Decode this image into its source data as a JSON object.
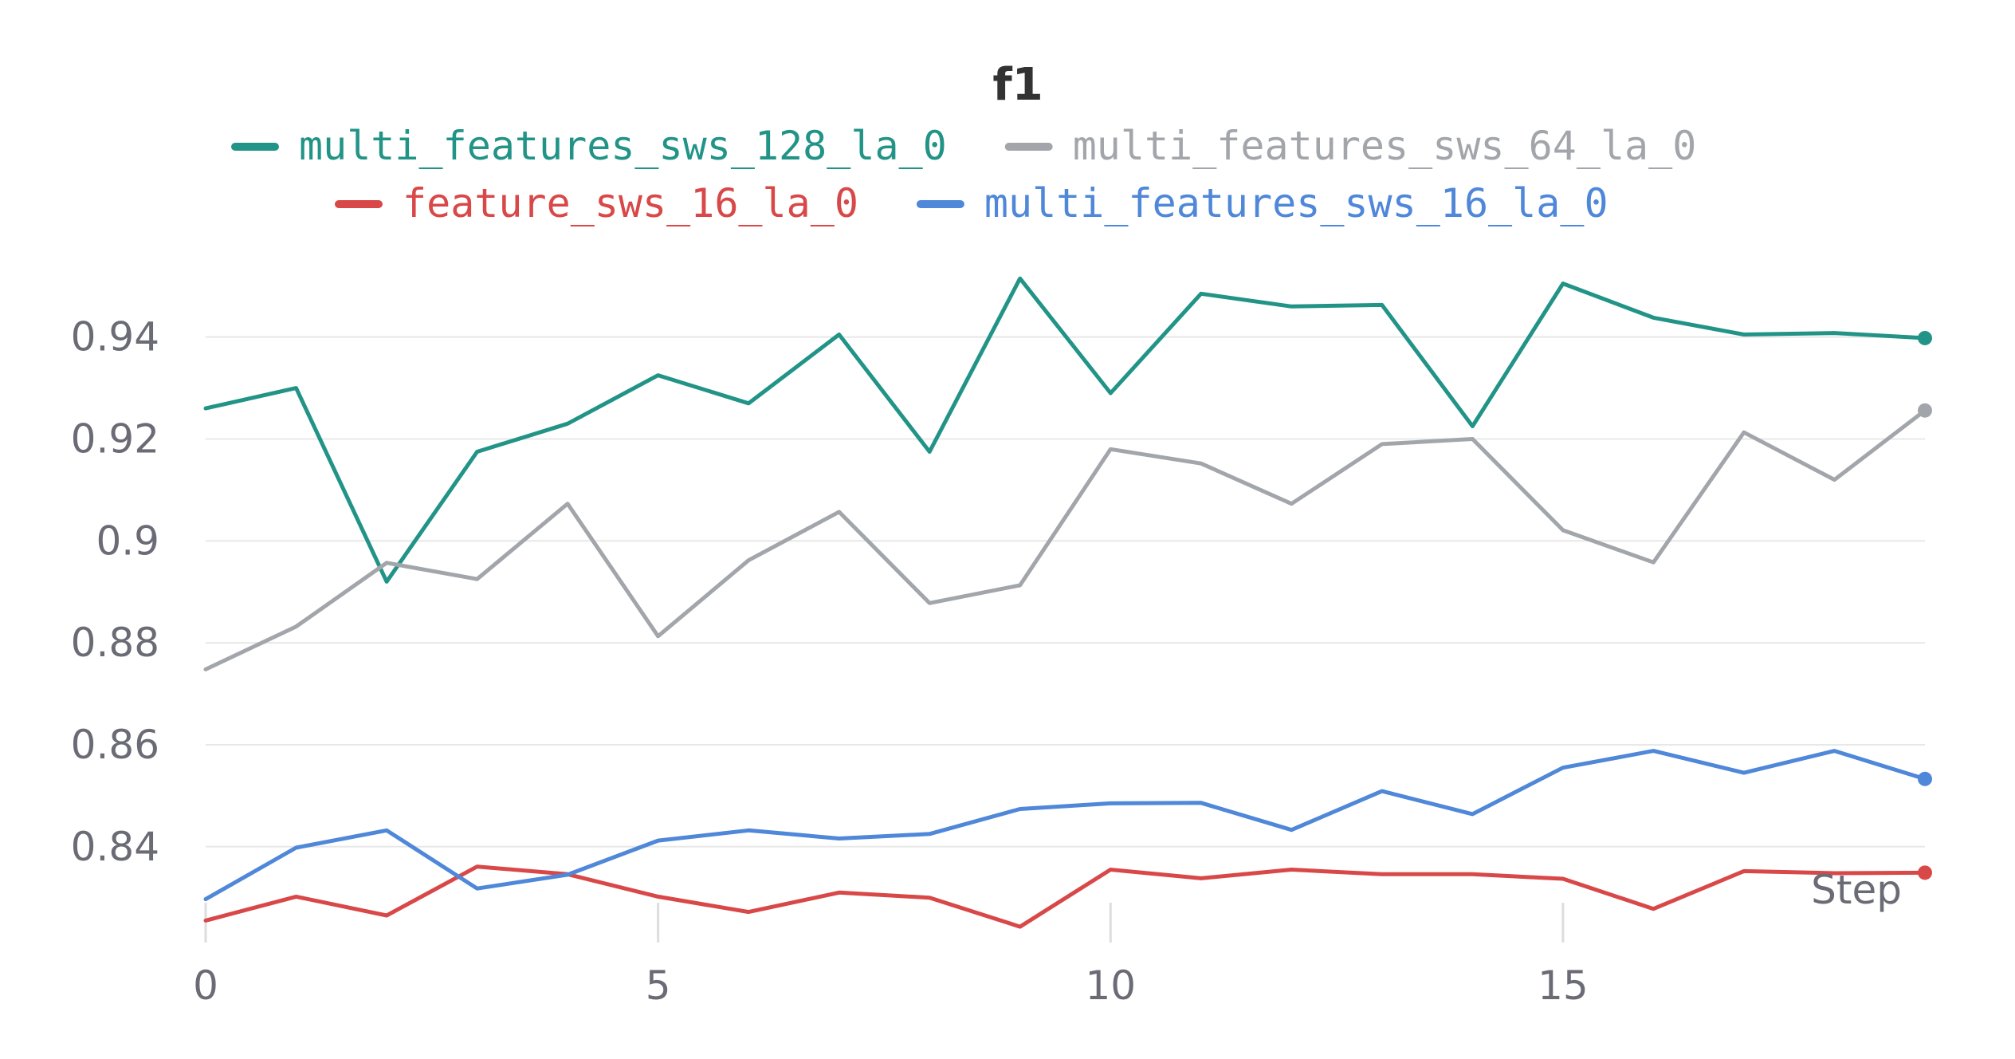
{
  "chart_data": {
    "type": "line",
    "title": "f1",
    "xlabel": "Step",
    "ylabel": "",
    "x": [
      0,
      1,
      2,
      3,
      4,
      5,
      6,
      7,
      8,
      9,
      10,
      11,
      12,
      13,
      14,
      15,
      16,
      17,
      18,
      19
    ],
    "xticks": [
      0,
      5,
      10,
      15
    ],
    "xtick_labels": [
      "0",
      "5",
      "10",
      "15"
    ],
    "xlim": [
      0,
      19
    ],
    "yticks": [
      0.84,
      0.86,
      0.88,
      0.9,
      0.92,
      0.94
    ],
    "ytick_labels": [
      "0.84",
      "0.86",
      "0.88",
      "0.9",
      "0.92",
      "0.94"
    ],
    "ylim": [
      0.8215,
      0.9545
    ],
    "grid": true,
    "legend_position": "top",
    "series": [
      {
        "name": "multi_features_sws_128_la_0",
        "color": "#229487",
        "values": [
          0.926,
          0.93,
          0.892,
          0.9175,
          0.923,
          0.9325,
          0.927,
          0.9405,
          0.9175,
          0.9515,
          0.929,
          0.9485,
          0.946,
          0.9463,
          0.9225,
          0.9505,
          0.9438,
          0.9405,
          0.9408,
          0.9398
        ]
      },
      {
        "name": "multi_features_sws_64_la_0",
        "color": "#a2a6ab",
        "values": [
          0.8748,
          0.8832,
          0.8957,
          0.8925,
          0.9073,
          0.8813,
          0.8962,
          0.9057,
          0.8878,
          0.8913,
          0.918,
          0.9152,
          0.9073,
          0.919,
          0.92,
          0.9021,
          0.8958,
          0.9213,
          0.912,
          0.9256
        ]
      },
      {
        "name": "feature_sws_16_la_0",
        "color": "#d94848",
        "values": [
          0.8255,
          0.8302,
          0.8265,
          0.8361,
          0.8346,
          0.8302,
          0.8272,
          0.831,
          0.83,
          0.8243,
          0.8355,
          0.8338,
          0.8355,
          0.8346,
          0.8346,
          0.8337,
          0.8278,
          0.8352,
          0.8348,
          0.8349
        ]
      },
      {
        "name": "multi_features_sws_16_la_0",
        "color": "#4f87d9",
        "values": [
          0.8297,
          0.8398,
          0.8432,
          0.8318,
          0.8345,
          0.8412,
          0.8432,
          0.8416,
          0.8425,
          0.8474,
          0.8485,
          0.8486,
          0.8433,
          0.8509,
          0.8464,
          0.8555,
          0.8588,
          0.8545,
          0.8588,
          0.8533
        ]
      }
    ]
  }
}
